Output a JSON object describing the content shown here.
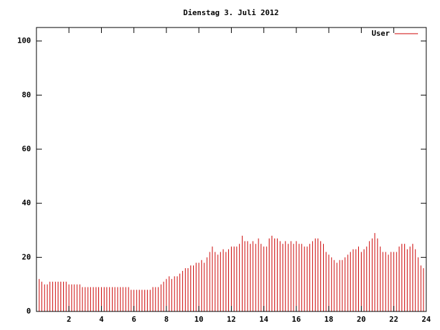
{
  "chart_data": {
    "type": "impulses",
    "title": "Dienstag 3. Juli 2012",
    "series": [
      {
        "name": "User",
        "color": "#cc0000",
        "x": [
          0,
          0.17,
          0.33,
          0.5,
          0.67,
          0.83,
          1,
          1.17,
          1.33,
          1.5,
          1.67,
          1.83,
          2,
          2.17,
          2.33,
          2.5,
          2.67,
          2.83,
          3,
          3.17,
          3.33,
          3.5,
          3.67,
          3.83,
          4,
          4.17,
          4.33,
          4.5,
          4.67,
          4.83,
          5,
          5.17,
          5.33,
          5.5,
          5.67,
          5.83,
          6,
          6.17,
          6.33,
          6.5,
          6.67,
          6.83,
          7,
          7.17,
          7.33,
          7.5,
          7.67,
          7.83,
          8,
          8.17,
          8.33,
          8.5,
          8.67,
          8.83,
          9,
          9.17,
          9.33,
          9.5,
          9.67,
          9.83,
          10,
          10.17,
          10.33,
          10.5,
          10.67,
          10.83,
          11,
          11.17,
          11.33,
          11.5,
          11.67,
          11.83,
          12,
          12.17,
          12.33,
          12.5,
          12.67,
          12.83,
          13,
          13.17,
          13.33,
          13.5,
          13.67,
          13.83,
          14,
          14.17,
          14.33,
          14.5,
          14.67,
          14.83,
          15,
          15.17,
          15.33,
          15.5,
          15.67,
          15.83,
          16,
          16.17,
          16.33,
          16.5,
          16.67,
          16.83,
          17,
          17.17,
          17.33,
          17.5,
          17.67,
          17.83,
          18,
          18.17,
          18.33,
          18.5,
          18.67,
          18.83,
          19,
          19.17,
          19.33,
          19.5,
          19.67,
          19.83,
          20,
          20.17,
          20.33,
          20.5,
          20.67,
          20.83,
          21,
          21.17,
          21.33,
          21.5,
          21.67,
          21.83,
          22,
          22.17,
          22.33,
          22.5,
          22.67,
          22.83,
          23,
          23.17,
          23.33,
          23.5,
          23.67,
          23.83
        ],
        "values": [
          13,
          12,
          11,
          10,
          10,
          11,
          11,
          11,
          11,
          11,
          11,
          11,
          10,
          10,
          10,
          10,
          10,
          9,
          9,
          9,
          9,
          9,
          9,
          9,
          9,
          9,
          9,
          9,
          9,
          9,
          9,
          9,
          9,
          9,
          9,
          8,
          8,
          8,
          8,
          8,
          8,
          8,
          8,
          9,
          9,
          9,
          10,
          11,
          12,
          13,
          12,
          13,
          13,
          14,
          15,
          16,
          16,
          17,
          17,
          18,
          18,
          19,
          18,
          20,
          22,
          24,
          22,
          21,
          22,
          23,
          22,
          23,
          24,
          24,
          24,
          25,
          28,
          26,
          26,
          25,
          26,
          25,
          27,
          25,
          24,
          24,
          27,
          28,
          27,
          27,
          26,
          25,
          26,
          25,
          26,
          25,
          26,
          25,
          25,
          24,
          24,
          25,
          26,
          27,
          27,
          26,
          25,
          22,
          21,
          20,
          19,
          18,
          19,
          19,
          20,
          21,
          22,
          23,
          23,
          24,
          22,
          23,
          24,
          26,
          27,
          29,
          27,
          24,
          22,
          22,
          21,
          22,
          22,
          22,
          24,
          25,
          25,
          23,
          24,
          25,
          23,
          20,
          17,
          16
        ]
      }
    ],
    "xlim": [
      0,
      24
    ],
    "xticks": [
      2,
      4,
      6,
      8,
      10,
      12,
      14,
      16,
      18,
      20,
      22,
      24
    ],
    "ylim": [
      0,
      105
    ],
    "yticks": [
      0,
      20,
      40,
      60,
      80,
      100
    ],
    "legend": "upper right"
  }
}
